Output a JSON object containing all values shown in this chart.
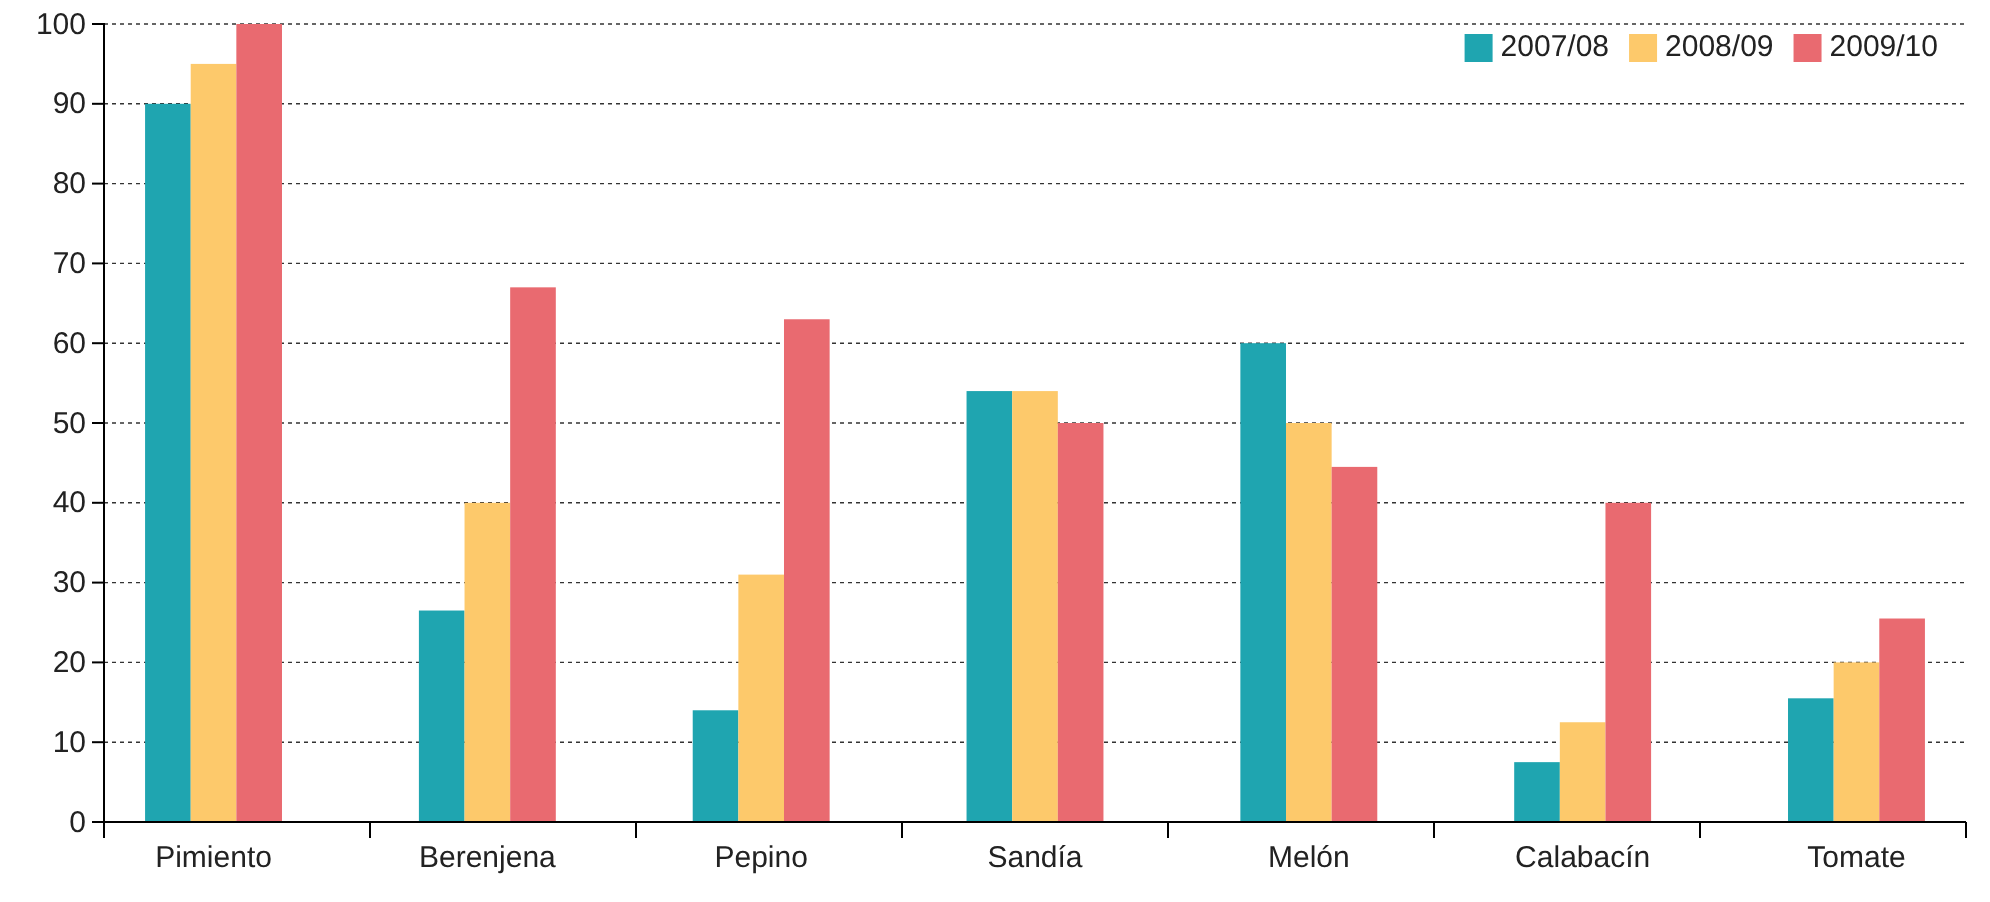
{
  "chart_data": {
    "type": "bar",
    "categories": [
      "Pimiento",
      "Berenjena",
      "Pepino",
      "Sandía",
      "Melón",
      "Calabacín",
      "Tomate"
    ],
    "series": [
      {
        "name": "2007/08",
        "color": "#1fa5b0",
        "values": [
          90,
          26.5,
          14,
          54,
          60,
          7.5,
          15.5
        ]
      },
      {
        "name": "2008/09",
        "color": "#fdc96b",
        "values": [
          95,
          40,
          31,
          54,
          50,
          12.5,
          20
        ]
      },
      {
        "name": "2009/10",
        "color": "#e96a70",
        "values": [
          100,
          67,
          63,
          50,
          44.5,
          40,
          25.5
        ]
      }
    ],
    "ylim": [
      0,
      100
    ],
    "yticks": [
      0,
      10,
      20,
      30,
      40,
      50,
      60,
      70,
      80,
      90,
      100
    ],
    "grid": "y",
    "legend": "top right"
  }
}
